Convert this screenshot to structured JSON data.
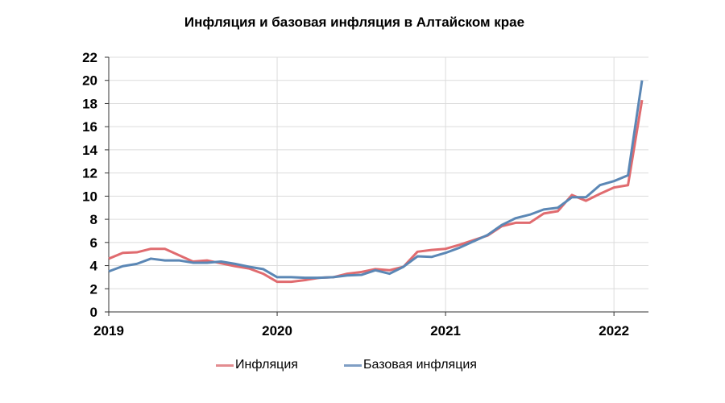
{
  "chart_data": {
    "type": "line",
    "title": "Инфляция и базовая инфляция в Алтайском крае",
    "xlabel": "",
    "ylabel": "",
    "x_start": "2019-01",
    "x_end": "2022-03",
    "x_ticks": [
      "2019",
      "2020",
      "2021",
      "2022"
    ],
    "ylim": [
      0,
      22
    ],
    "y_ticks": [
      0,
      2,
      4,
      6,
      8,
      10,
      12,
      14,
      16,
      18,
      20,
      22
    ],
    "grid": true,
    "legend_placement": "bottom",
    "series": [
      {
        "name": "Инфляция",
        "color": "#e06b6f",
        "values": [
          4.6,
          5.1,
          5.15,
          5.45,
          5.45,
          4.9,
          4.35,
          4.45,
          4.2,
          3.95,
          3.75,
          3.3,
          2.6,
          2.6,
          2.75,
          2.95,
          3.0,
          3.3,
          3.45,
          3.7,
          3.6,
          3.9,
          5.2,
          5.35,
          5.45,
          5.8,
          6.2,
          6.6,
          7.4,
          7.7,
          7.7,
          8.5,
          8.7,
          10.1,
          9.6,
          10.2,
          10.75,
          10.95,
          18.3
        ]
      },
      {
        "name": "Базовая инфляция",
        "color": "#5b87b5",
        "values": [
          3.5,
          3.95,
          4.15,
          4.6,
          4.45,
          4.45,
          4.25,
          4.25,
          4.35,
          4.15,
          3.9,
          3.7,
          3.0,
          3.0,
          2.95,
          2.95,
          3.0,
          3.15,
          3.2,
          3.6,
          3.3,
          3.9,
          4.8,
          4.75,
          5.1,
          5.55,
          6.1,
          6.65,
          7.5,
          8.1,
          8.4,
          8.85,
          9.0,
          9.9,
          9.9,
          10.95,
          11.3,
          11.8,
          20.0
        ]
      }
    ]
  }
}
